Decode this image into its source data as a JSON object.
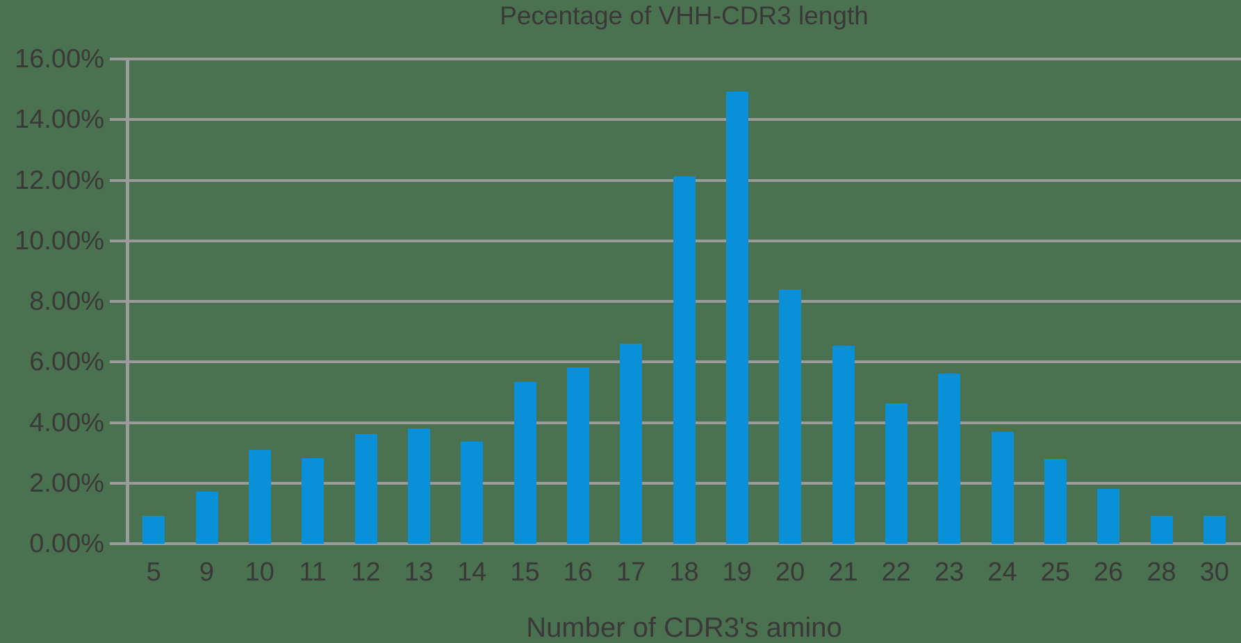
{
  "background_color": "#4a7250",
  "chart_data": {
    "type": "bar",
    "title": "Pecentage of VHH-CDR3 length",
    "xlabel": "Number of CDR3's amino",
    "ylabel": "",
    "categories": [
      "5",
      "9",
      "10",
      "11",
      "12",
      "13",
      "14",
      "15",
      "16",
      "17",
      "18",
      "19",
      "20",
      "21",
      "22",
      "23",
      "24",
      "25",
      "26",
      "28",
      "30"
    ],
    "values": [
      0.92,
      1.72,
      3.1,
      2.82,
      3.63,
      3.81,
      3.37,
      5.35,
      5.83,
      6.6,
      12.13,
      14.93,
      8.38,
      6.53,
      4.63,
      5.62,
      3.7,
      2.8,
      1.81,
      0.92,
      0.92
    ],
    "unit": "%",
    "ylim": [
      0,
      16
    ],
    "ytick_step": 2,
    "ytick_labels": [
      "0.00%",
      "2.00%",
      "4.00%",
      "6.00%",
      "8.00%",
      "10.00%",
      "12.00%",
      "14.00%",
      "16.00%"
    ],
    "grid": true,
    "legend": false,
    "bar_color": "#0990d9",
    "gridline_color": "#9b9b9b",
    "text_color": "#3b3838"
  }
}
